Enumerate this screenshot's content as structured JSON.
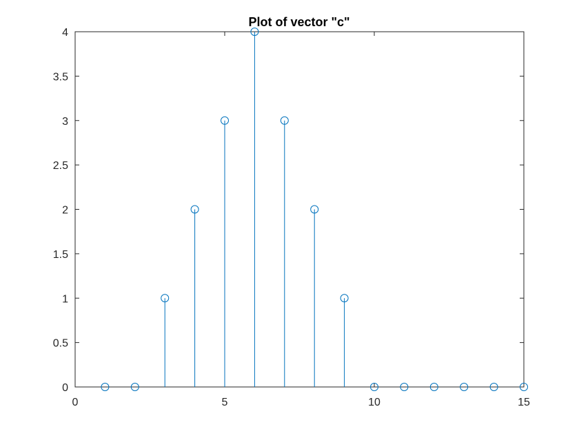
{
  "chart_data": {
    "type": "stem",
    "title": "Plot of vector \"c\"",
    "xlabel": "",
    "ylabel": "",
    "xlim": [
      0,
      15
    ],
    "ylim": [
      0,
      4
    ],
    "xticks": [
      "0",
      "5",
      "10",
      "15"
    ],
    "yticks": [
      "0",
      "0.5",
      "1",
      "1.5",
      "2",
      "2.5",
      "3",
      "3.5",
      "4"
    ],
    "grid": false,
    "legend": "none",
    "series": [
      {
        "x": [
          1,
          2,
          3,
          4,
          5,
          6,
          7,
          8,
          9,
          10,
          11,
          12,
          13,
          14,
          15
        ],
        "values": [
          0,
          0,
          1,
          2,
          3,
          4,
          3,
          2,
          1,
          0,
          0,
          0,
          0,
          0,
          0
        ],
        "marker": "circle-open",
        "color": "#0072BD"
      }
    ],
    "axis_color": "#262626",
    "background": "#ffffff"
  }
}
